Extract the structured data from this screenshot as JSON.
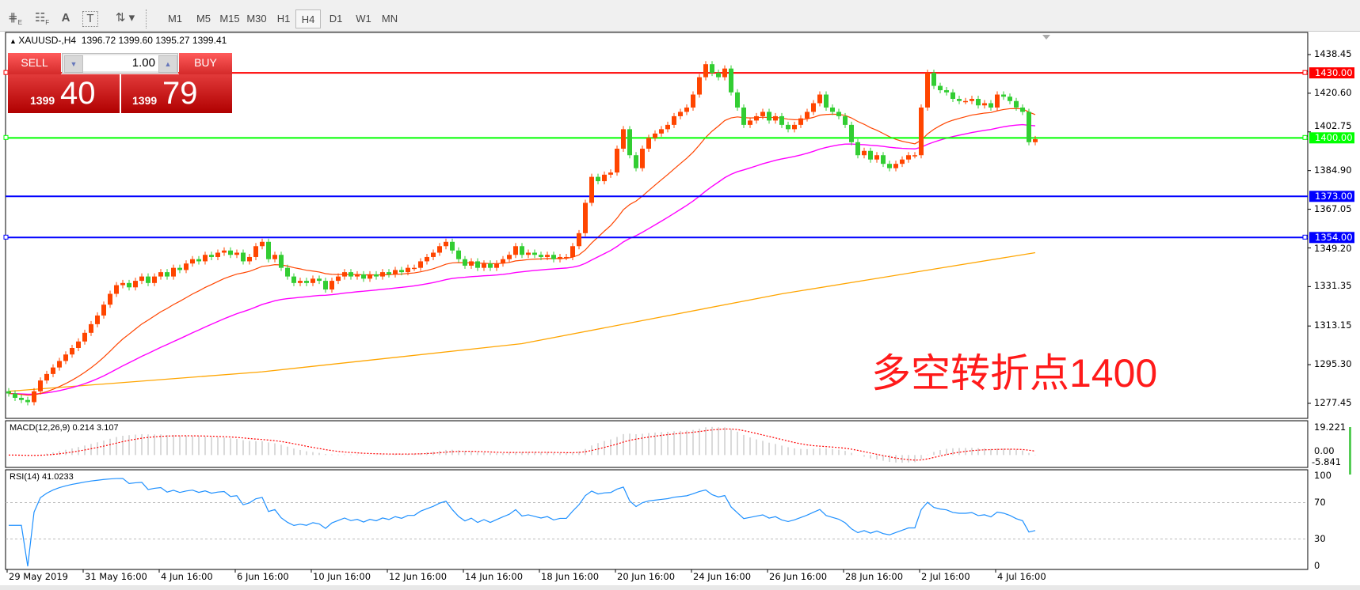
{
  "toolbar": {
    "tools": [
      {
        "icon": "expert-advisor-icon",
        "label": "E"
      },
      {
        "icon": "fibonacci-grid-icon",
        "label": "F"
      },
      {
        "icon": "text-icon",
        "label": "A"
      },
      {
        "icon": "text-label-icon",
        "label": "T"
      },
      {
        "icon": "arrows-icon",
        "label": "⇅"
      }
    ],
    "timeframes": [
      "M1",
      "M5",
      "M15",
      "M30",
      "H1",
      "H4",
      "D1",
      "W1",
      "MN"
    ],
    "selected_timeframe": "H4"
  },
  "chart": {
    "symbol": "XAUUSD-,H4",
    "ohlc": "1396.72 1399.60 1395.27 1399.41",
    "annotation": "多空转折点1400"
  },
  "trade_panel": {
    "sell_label": "SELL",
    "buy_label": "BUY",
    "lot": "1.00",
    "sell_price_prefix": "1399",
    "sell_price_suffix": "40",
    "buy_price_prefix": "1399",
    "buy_price_suffix": "79",
    "color": "#d42a2a"
  },
  "price_axis": [
    "1438.45",
    "1420.60",
    "1402.75",
    "1384.90",
    "1367.05",
    "1349.20",
    "1331.35",
    "1313.15",
    "1295.30",
    "1277.45"
  ],
  "levels": [
    {
      "price": 1430.0,
      "label": "1430.00",
      "color": "#ff0000"
    },
    {
      "price": 1400.0,
      "label": "1400.00",
      "color": "#00ff00"
    },
    {
      "price": 1373.0,
      "label": "1373.00",
      "color": "#0000ff"
    },
    {
      "price": 1354.0,
      "label": "1354.00",
      "color": "#0000ff"
    }
  ],
  "time_axis": [
    "29 May 2019",
    "31 May 16:00",
    "4 Jun 16:00",
    "6 Jun 16:00",
    "10 Jun 16:00",
    "12 Jun 16:00",
    "14 Jun 16:00",
    "18 Jun 16:00",
    "20 Jun 16:00",
    "24 Jun 16:00",
    "26 Jun 16:00",
    "28 Jun 16:00",
    "2 Jul 16:00",
    "4 Jul 16:00"
  ],
  "macd": {
    "label": "MACD(12,26,9) 0.214 3.107",
    "axis": [
      "19.221",
      "0.00",
      "-5.841"
    ]
  },
  "rsi": {
    "label": "RSI(14) 41.0233",
    "axis": [
      "100",
      "70",
      "30",
      "0"
    ]
  },
  "chart_data": {
    "type": "candlestick",
    "bull_color": "#ff4500",
    "bear_color": "#32cd32",
    "ylim": [
      1270,
      1445
    ],
    "close": [
      1282,
      1280,
      1279,
      1278,
      1283,
      1288,
      1291,
      1294,
      1297,
      1300,
      1303,
      1306,
      1310,
      1314,
      1318,
      1323,
      1328,
      1332,
      1333,
      1331,
      1334,
      1336,
      1333,
      1336,
      1338,
      1336,
      1340,
      1339,
      1342,
      1344,
      1343,
      1346,
      1345,
      1347,
      1348,
      1346,
      1347,
      1343,
      1345,
      1350,
      1352,
      1344,
      1346,
      1340,
      1336,
      1333,
      1334,
      1333,
      1335,
      1334,
      1330,
      1334,
      1336,
      1338,
      1336,
      1337,
      1335,
      1337,
      1336,
      1338,
      1337,
      1339,
      1338,
      1340,
      1340,
      1343,
      1345,
      1347,
      1350,
      1352,
      1348,
      1344,
      1341,
      1343,
      1340,
      1342,
      1340,
      1342,
      1344,
      1346,
      1350,
      1346,
      1347,
      1346,
      1345,
      1346,
      1344,
      1345,
      1345,
      1350,
      1356,
      1370,
      1382,
      1380,
      1383,
      1384,
      1395,
      1404,
      1392,
      1386,
      1395,
      1400,
      1402,
      1404,
      1406,
      1410,
      1412,
      1414,
      1420,
      1428,
      1434,
      1430,
      1428,
      1432,
      1421,
      1414,
      1406,
      1408,
      1410,
      1412,
      1408,
      1410,
      1406,
      1404,
      1406,
      1409,
      1412,
      1416,
      1420,
      1414,
      1412,
      1410,
      1406,
      1398,
      1392,
      1394,
      1390,
      1392,
      1388,
      1386,
      1388,
      1390,
      1392,
      1392,
      1414,
      1430,
      1424,
      1422,
      1421,
      1418,
      1417,
      1417,
      1418,
      1415,
      1416,
      1414,
      1420,
      1419,
      1417,
      1414,
      1412,
      1398,
      1399.41
    ],
    "ma_fast_period": 20,
    "ma_mid_period": 50,
    "ma_fast_color": "#ff4500",
    "ma_mid_color": "#ff00ff",
    "ma_long_color": "#ffa500",
    "ma_long": [
      [
        0,
        1283
      ],
      [
        40,
        1292
      ],
      [
        81,
        1305
      ],
      [
        122,
        1328
      ],
      [
        162,
        1347
      ]
    ]
  }
}
